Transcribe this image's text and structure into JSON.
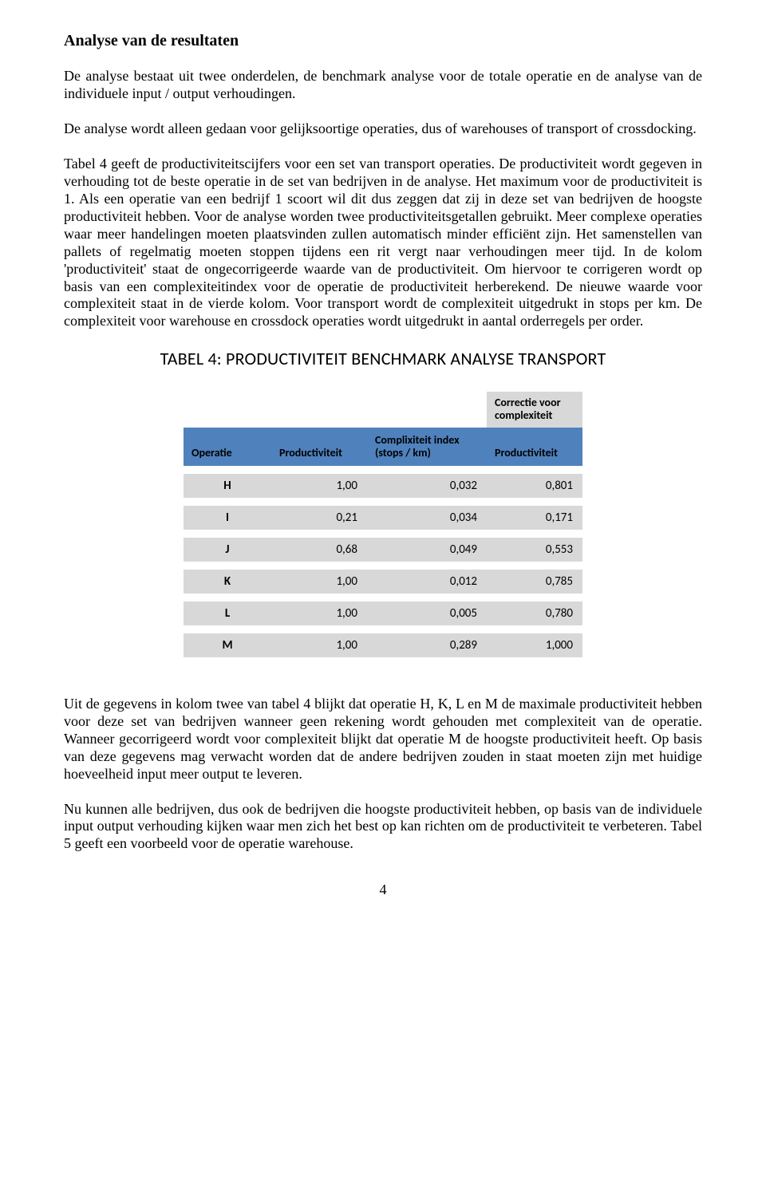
{
  "heading": "Analyse van de resultaten",
  "para1": "De analyse bestaat uit twee onderdelen, de benchmark analyse voor de totale operatie en de analyse van de individuele input / output verhoudingen.",
  "para2": "De analyse wordt alleen gedaan voor gelijksoortige operaties, dus of warehouses of transport of crossdocking.",
  "para3": "Tabel 4 geeft de productiviteitscijfers voor een set van transport operaties. De productiviteit wordt gegeven in verhouding tot de beste operatie in de set van bedrijven in de analyse. Het maximum voor de productiviteit is 1. Als een operatie van een bedrijf 1 scoort wil dit dus zeggen dat zij in deze set van bedrijven de hoogste productiviteit hebben. Voor de analyse worden twee productiviteitsgetallen gebruikt. Meer complexe operaties waar meer handelingen moeten plaatsvinden zullen automatisch minder efficiënt zijn. Het samenstellen van pallets of regelmatig moeten stoppen tijdens een rit vergt naar verhoudingen meer tijd. In de kolom 'productiviteit' staat de ongecorrigeerde waarde van de productiviteit. Om hiervoor te corrigeren wordt op basis van een complexiteitindex voor de operatie de productiviteit herberekend. De nieuwe waarde voor complexiteit staat in de vierde kolom. Voor transport wordt de complexiteit uitgedrukt in stops per km. De complexiteit voor warehouse en crossdock operaties wordt uitgedrukt in aantal orderregels per order.",
  "tableCaption": "TABEL 4: PRODUCTIVITEIT BENCHMARK ANALYSE TRANSPORT",
  "table": {
    "corrHeader": "Correctie voor complexiteit",
    "columns": {
      "c1": "Operatie",
      "c2": "Productiviteit",
      "c3": "Complixiteit index (stops / km)",
      "c4": "Productiviteit"
    },
    "rows": [
      {
        "op": "H",
        "p": "1,00",
        "ci": "0,032",
        "pc": "0,801"
      },
      {
        "op": "I",
        "p": "0,21",
        "ci": "0,034",
        "pc": "0,171"
      },
      {
        "op": "J",
        "p": "0,68",
        "ci": "0,049",
        "pc": "0,553"
      },
      {
        "op": "K",
        "p": "1,00",
        "ci": "0,012",
        "pc": "0,785"
      },
      {
        "op": "L",
        "p": "1,00",
        "ci": "0,005",
        "pc": "0,780"
      },
      {
        "op": "M",
        "p": "1,00",
        "ci": "0,289",
        "pc": "1,000"
      }
    ],
    "colors": {
      "headerBg": "#4f81bd",
      "bandBg": "#d8d8d8",
      "pageBg": "#ffffff"
    }
  },
  "para4": "Uit de gegevens in kolom twee van tabel 4 blijkt dat operatie H, K, L en M de maximale productiviteit hebben voor deze set van bedrijven wanneer geen rekening wordt gehouden met complexiteit van de operatie. Wanneer gecorrigeerd wordt voor complexiteit blijkt dat operatie M de hoogste productiviteit heeft. Op basis van deze gegevens mag verwacht worden dat de andere bedrijven zouden in staat moeten zijn met huidige hoeveelheid input meer output te leveren.",
  "para5": "Nu kunnen alle bedrijven, dus ook de bedrijven die hoogste productiviteit hebben, op basis van de individuele input output verhouding kijken waar men zich het best op kan richten om de productiviteit te verbeteren. Tabel 5 geeft een voorbeeld voor de operatie warehouse.",
  "pageNumber": "4"
}
